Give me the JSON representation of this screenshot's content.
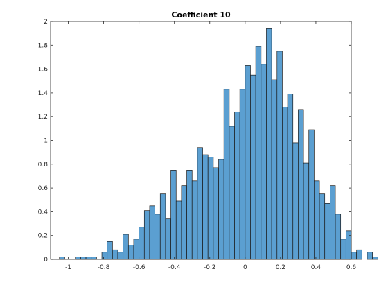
{
  "chart_data": {
    "type": "bar",
    "title": "Coefficient 10",
    "xlabel": "",
    "ylabel": "",
    "xlim": [
      -1.1,
      0.6
    ],
    "ylim": [
      0,
      2
    ],
    "grid": false,
    "bar_color": "#5B9FD1",
    "edge_color": "#1a1a1a",
    "x_ticks": [
      -1,
      -0.8,
      -0.6,
      -0.4,
      -0.2,
      0,
      0.2,
      0.4,
      0.6
    ],
    "x_tick_labels": [
      "-1",
      "-0.8",
      "-0.6",
      "-0.4",
      "-0.2",
      "0",
      "0.2",
      "0.4",
      "0.6"
    ],
    "y_ticks": [
      0,
      0.2,
      0.4,
      0.6,
      0.8,
      1,
      1.2,
      1.4,
      1.6,
      1.8,
      2
    ],
    "y_tick_labels": [
      "0",
      "0.2",
      "0.4",
      "0.6",
      "0.8",
      "1",
      "1.2",
      "1.4",
      "1.6",
      "1.8",
      "2"
    ],
    "bin_width": 0.03,
    "bins": [
      {
        "x0": -1.05,
        "value": 0.02
      },
      {
        "x0": -0.96,
        "value": 0.02
      },
      {
        "x0": -0.93,
        "value": 0.02
      },
      {
        "x0": -0.9,
        "value": 0.02
      },
      {
        "x0": -0.87,
        "value": 0.02
      },
      {
        "x0": -0.81,
        "value": 0.06
      },
      {
        "x0": -0.78,
        "value": 0.15
      },
      {
        "x0": -0.75,
        "value": 0.08
      },
      {
        "x0": -0.72,
        "value": 0.06
      },
      {
        "x0": -0.69,
        "value": 0.21
      },
      {
        "x0": -0.66,
        "value": 0.12
      },
      {
        "x0": -0.63,
        "value": 0.17
      },
      {
        "x0": -0.6,
        "value": 0.27
      },
      {
        "x0": -0.57,
        "value": 0.41
      },
      {
        "x0": -0.54,
        "value": 0.45
      },
      {
        "x0": -0.51,
        "value": 0.38
      },
      {
        "x0": -0.48,
        "value": 0.55
      },
      {
        "x0": -0.45,
        "value": 0.34
      },
      {
        "x0": -0.42,
        "value": 0.75
      },
      {
        "x0": -0.39,
        "value": 0.49
      },
      {
        "x0": -0.36,
        "value": 0.62
      },
      {
        "x0": -0.33,
        "value": 0.75
      },
      {
        "x0": -0.3,
        "value": 0.66
      },
      {
        "x0": -0.27,
        "value": 0.94
      },
      {
        "x0": -0.24,
        "value": 0.88
      },
      {
        "x0": -0.21,
        "value": 0.86
      },
      {
        "x0": -0.18,
        "value": 0.77
      },
      {
        "x0": -0.15,
        "value": 0.84
      },
      {
        "x0": -0.12,
        "value": 1.43
      },
      {
        "x0": -0.09,
        "value": 1.12
      },
      {
        "x0": -0.06,
        "value": 1.24
      },
      {
        "x0": -0.03,
        "value": 1.43
      },
      {
        "x0": 0.0,
        "value": 1.63
      },
      {
        "x0": 0.03,
        "value": 1.55
      },
      {
        "x0": 0.06,
        "value": 1.79
      },
      {
        "x0": 0.09,
        "value": 1.64
      },
      {
        "x0": 0.12,
        "value": 1.94
      },
      {
        "x0": 0.15,
        "value": 1.51
      },
      {
        "x0": 0.18,
        "value": 1.75
      },
      {
        "x0": 0.21,
        "value": 1.28
      },
      {
        "x0": 0.24,
        "value": 1.39
      },
      {
        "x0": 0.27,
        "value": 0.98
      },
      {
        "x0": 0.3,
        "value": 1.26
      },
      {
        "x0": 0.33,
        "value": 0.81
      },
      {
        "x0": 0.36,
        "value": 1.09
      },
      {
        "x0": 0.39,
        "value": 0.66
      },
      {
        "x0": 0.42,
        "value": 0.55
      },
      {
        "x0": 0.45,
        "value": 0.47
      },
      {
        "x0": 0.48,
        "value": 0.62
      },
      {
        "x0": 0.51,
        "value": 0.38
      },
      {
        "x0": 0.54,
        "value": 0.17
      },
      {
        "x0": 0.57,
        "value": 0.24
      },
      {
        "x0": 0.6,
        "value": 0.06
      },
      {
        "x0": 0.63,
        "value": 0.08
      },
      {
        "x0": 0.69,
        "value": 0.06
      },
      {
        "x0": 0.72,
        "value": 0.02
      }
    ]
  }
}
